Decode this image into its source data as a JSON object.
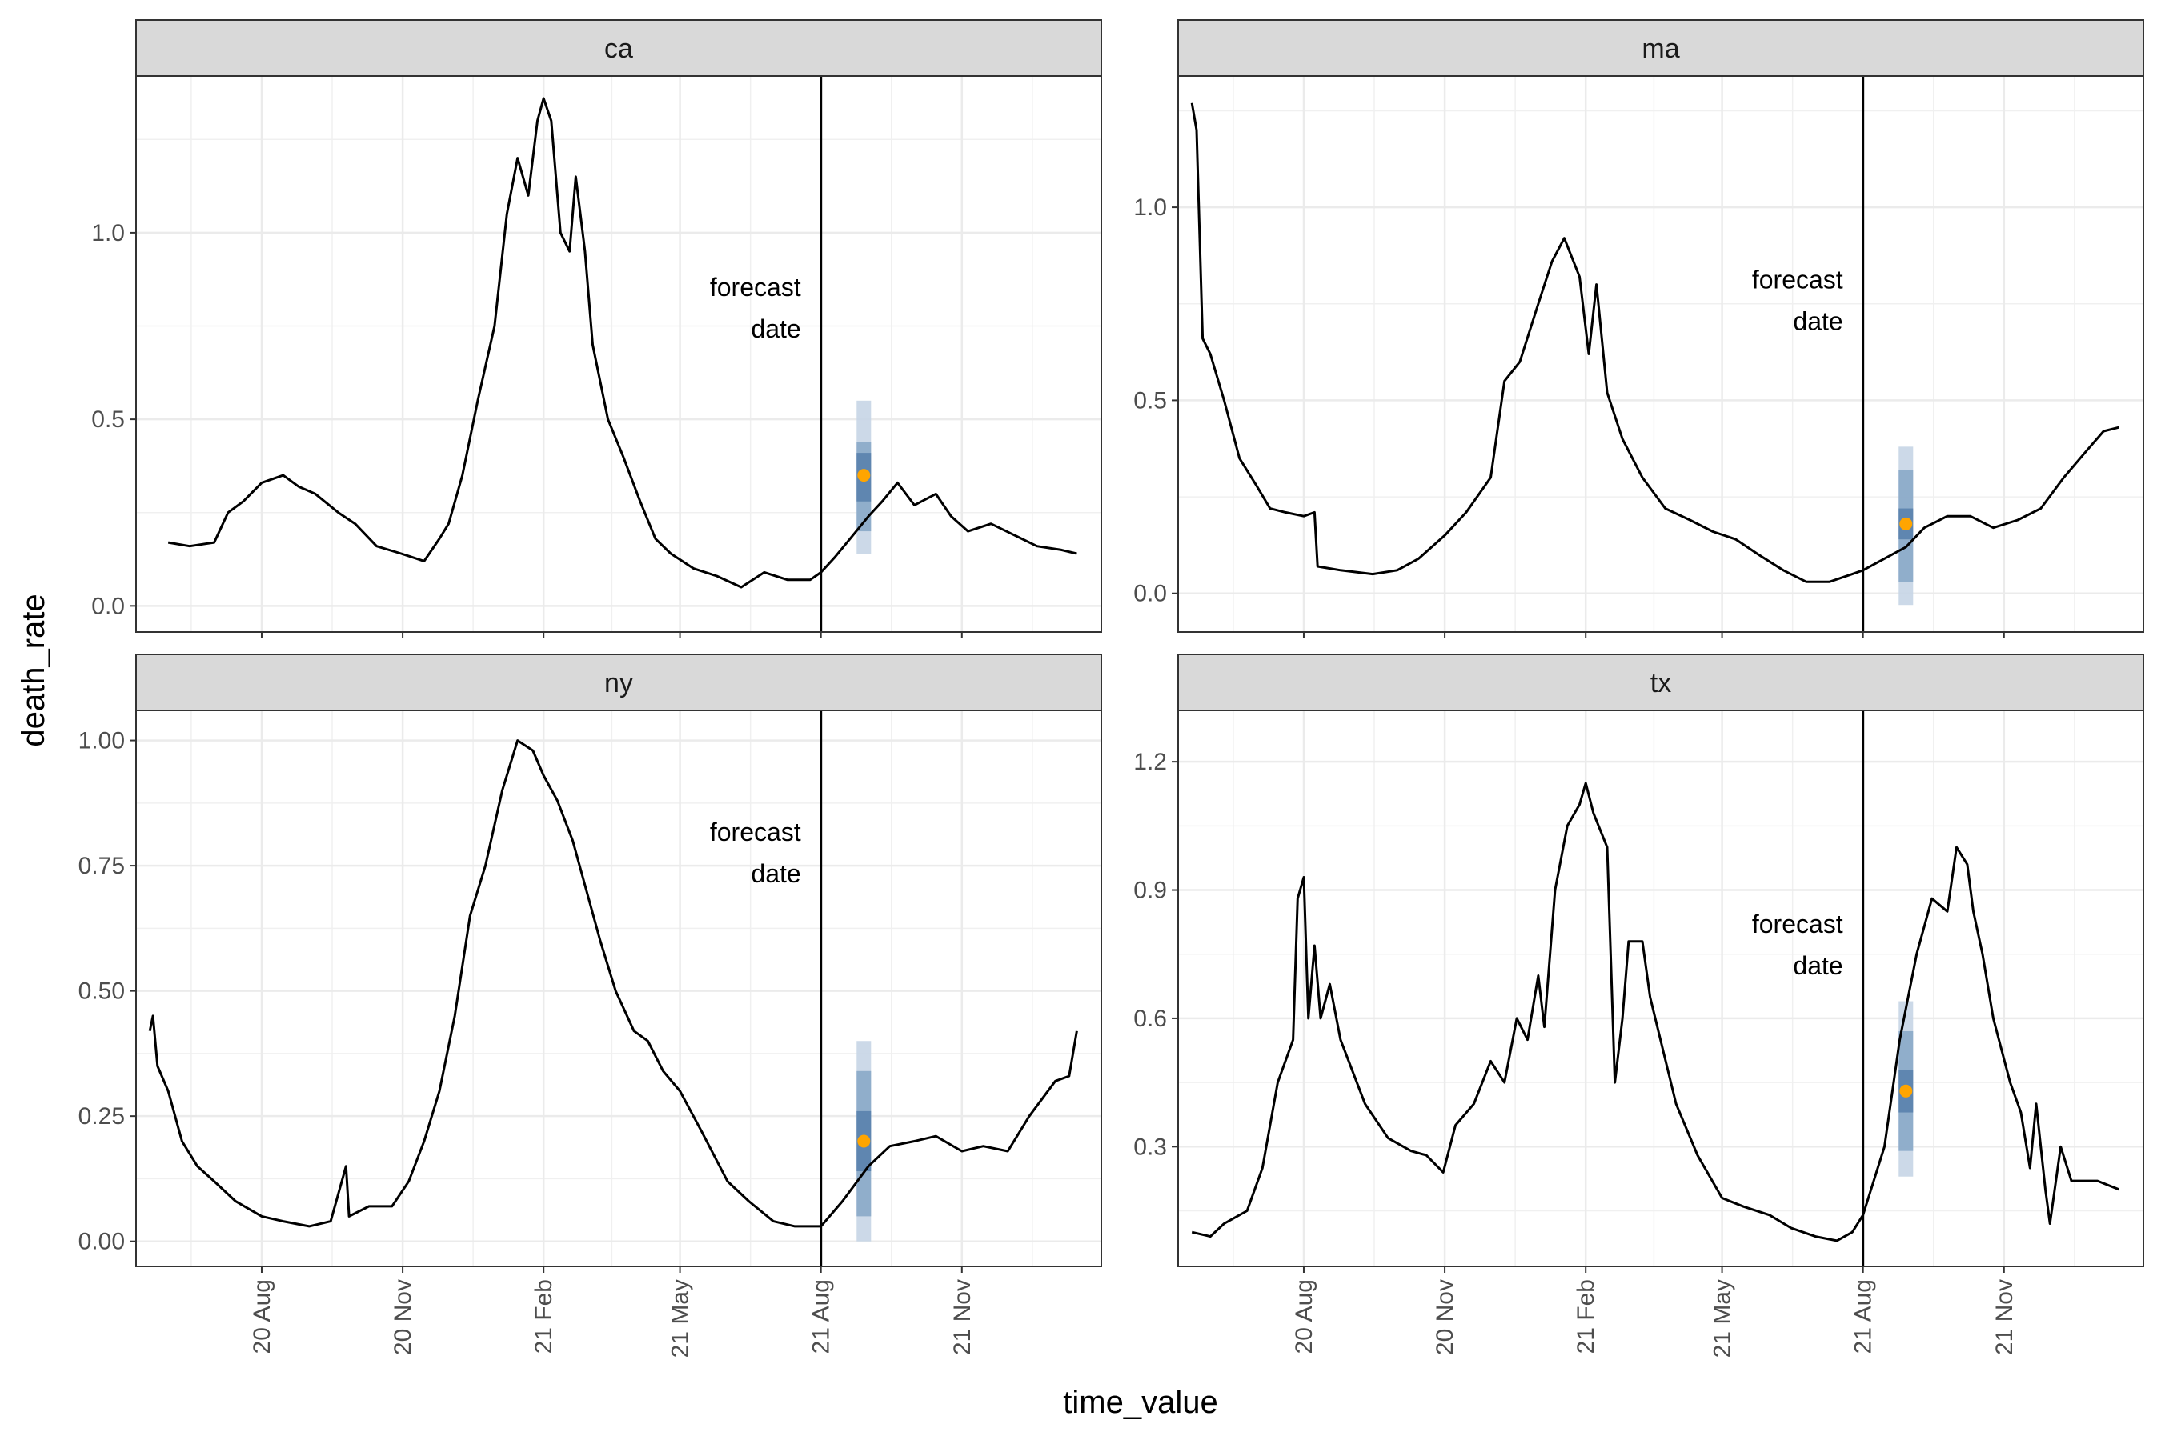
{
  "chart_data": {
    "type": "line",
    "xlabel": "time_value",
    "ylabel": "death_rate",
    "x_ticks": [
      "20 Aug",
      "20 Nov",
      "21 Feb",
      "21 May",
      "21 Aug",
      "21 Nov"
    ],
    "x_tick_dates": [
      "2020-08-01",
      "2020-11-01",
      "2021-02-01",
      "2021-05-01",
      "2021-08-01",
      "2021-11-01"
    ],
    "xlim": [
      "2020-05-11",
      "2022-01-31"
    ],
    "forecast_date": "2021-08-01",
    "target_date": "2021-08-29",
    "annotation": [
      "forecast",
      "date"
    ],
    "grid": true,
    "interval_colors": [
      "#c6d5e5",
      "#8aa8c8",
      "#5a82ad"
    ],
    "point_color": "#ffa500",
    "line_color": "#000000",
    "panels": [
      {
        "name": "ca",
        "ylim": [
          -0.07,
          1.42
        ],
        "y_ticks": [
          "0.0",
          "0.5",
          "1.0"
        ],
        "y_tick_values": [
          0.0,
          0.5,
          1.0
        ],
        "annotation_y": 0.83,
        "forecast": {
          "point": 0.35,
          "bands": [
            [
              0.14,
              0.55
            ],
            [
              0.2,
              0.44
            ],
            [
              0.28,
              0.41
            ]
          ]
        },
        "series": [
          [
            "2020-06-01",
            0.17
          ],
          [
            "2020-06-15",
            0.16
          ],
          [
            "2020-07-01",
            0.17
          ],
          [
            "2020-07-10",
            0.25
          ],
          [
            "2020-07-20",
            0.28
          ],
          [
            "2020-08-01",
            0.33
          ],
          [
            "2020-08-15",
            0.35
          ],
          [
            "2020-08-25",
            0.32
          ],
          [
            "2020-09-05",
            0.3
          ],
          [
            "2020-09-20",
            0.25
          ],
          [
            "2020-10-01",
            0.22
          ],
          [
            "2020-10-15",
            0.16
          ],
          [
            "2020-10-31",
            0.14
          ],
          [
            "2020-11-15",
            0.12
          ],
          [
            "2020-11-25",
            0.18
          ],
          [
            "2020-12-01",
            0.22
          ],
          [
            "2020-12-10",
            0.35
          ],
          [
            "2020-12-20",
            0.55
          ],
          [
            "2020-12-31",
            0.75
          ],
          [
            "2021-01-08",
            1.05
          ],
          [
            "2021-01-15",
            1.2
          ],
          [
            "2021-01-22",
            1.1
          ],
          [
            "2021-01-28",
            1.3
          ],
          [
            "2021-02-01",
            1.36
          ],
          [
            "2021-02-06",
            1.3
          ],
          [
            "2021-02-12",
            1.0
          ],
          [
            "2021-02-18",
            0.95
          ],
          [
            "2021-02-22",
            1.15
          ],
          [
            "2021-02-28",
            0.95
          ],
          [
            "2021-03-05",
            0.7
          ],
          [
            "2021-03-15",
            0.5
          ],
          [
            "2021-03-25",
            0.4
          ],
          [
            "2021-04-05",
            0.28
          ],
          [
            "2021-04-15",
            0.18
          ],
          [
            "2021-04-25",
            0.14
          ],
          [
            "2021-05-10",
            0.1
          ],
          [
            "2021-05-25",
            0.08
          ],
          [
            "2021-06-10",
            0.05
          ],
          [
            "2021-06-25",
            0.09
          ],
          [
            "2021-07-10",
            0.07
          ],
          [
            "2021-07-25",
            0.07
          ],
          [
            "2021-08-01",
            0.09
          ],
          [
            "2021-08-10",
            0.13
          ],
          [
            "2021-08-20",
            0.18
          ],
          [
            "2021-09-01",
            0.24
          ],
          [
            "2021-09-10",
            0.28
          ],
          [
            "2021-09-20",
            0.33
          ],
          [
            "2021-10-01",
            0.27
          ],
          [
            "2021-10-15",
            0.3
          ],
          [
            "2021-10-25",
            0.24
          ],
          [
            "2021-11-05",
            0.2
          ],
          [
            "2021-11-20",
            0.22
          ],
          [
            "2021-12-05",
            0.19
          ],
          [
            "2021-12-20",
            0.16
          ],
          [
            "2022-01-05",
            0.15
          ],
          [
            "2022-01-15",
            0.14
          ]
        ]
      },
      {
        "name": "ma",
        "ylim": [
          -0.1,
          1.34
        ],
        "y_ticks": [
          "0.0",
          "0.5",
          "1.0"
        ],
        "y_tick_values": [
          0.0,
          0.5,
          1.0
        ],
        "annotation_y": 0.79,
        "forecast": {
          "point": 0.18,
          "bands": [
            [
              -0.03,
              0.38
            ],
            [
              0.03,
              0.32
            ],
            [
              0.14,
              0.22
            ]
          ]
        },
        "series": [
          [
            "2020-05-20",
            1.27
          ],
          [
            "2020-05-23",
            1.2
          ],
          [
            "2020-05-27",
            0.66
          ],
          [
            "2020-06-01",
            0.62
          ],
          [
            "2020-06-10",
            0.5
          ],
          [
            "2020-06-20",
            0.35
          ],
          [
            "2020-07-01",
            0.28
          ],
          [
            "2020-07-10",
            0.22
          ],
          [
            "2020-07-20",
            0.21
          ],
          [
            "2020-08-01",
            0.2
          ],
          [
            "2020-08-08",
            0.21
          ],
          [
            "2020-08-10",
            0.07
          ],
          [
            "2020-08-25",
            0.06
          ],
          [
            "2020-09-15",
            0.05
          ],
          [
            "2020-10-01",
            0.06
          ],
          [
            "2020-10-15",
            0.09
          ],
          [
            "2020-11-01",
            0.15
          ],
          [
            "2020-11-15",
            0.21
          ],
          [
            "2020-12-01",
            0.3
          ],
          [
            "2020-12-10",
            0.55
          ],
          [
            "2020-12-20",
            0.6
          ],
          [
            "2021-01-01",
            0.75
          ],
          [
            "2021-01-10",
            0.86
          ],
          [
            "2021-01-18",
            0.92
          ],
          [
            "2021-01-28",
            0.82
          ],
          [
            "2021-02-03",
            0.62
          ],
          [
            "2021-02-08",
            0.8
          ],
          [
            "2021-02-15",
            0.52
          ],
          [
            "2021-02-25",
            0.4
          ],
          [
            "2021-03-10",
            0.3
          ],
          [
            "2021-03-25",
            0.22
          ],
          [
            "2021-04-10",
            0.19
          ],
          [
            "2021-04-25",
            0.16
          ],
          [
            "2021-05-10",
            0.14
          ],
          [
            "2021-05-25",
            0.1
          ],
          [
            "2021-06-10",
            0.06
          ],
          [
            "2021-06-25",
            0.03
          ],
          [
            "2021-07-10",
            0.03
          ],
          [
            "2021-07-25",
            0.05
          ],
          [
            "2021-08-01",
            0.06
          ],
          [
            "2021-08-15",
            0.09
          ],
          [
            "2021-08-29",
            0.12
          ],
          [
            "2021-09-10",
            0.17
          ],
          [
            "2021-09-25",
            0.2
          ],
          [
            "2021-10-10",
            0.2
          ],
          [
            "2021-10-25",
            0.17
          ],
          [
            "2021-11-10",
            0.19
          ],
          [
            "2021-11-25",
            0.22
          ],
          [
            "2021-12-10",
            0.3
          ],
          [
            "2021-12-25",
            0.37
          ],
          [
            "2022-01-05",
            0.42
          ],
          [
            "2022-01-15",
            0.43
          ]
        ]
      },
      {
        "name": "ny",
        "ylim": [
          -0.05,
          1.06
        ],
        "y_ticks": [
          "0.00",
          "0.25",
          "0.50",
          "0.75",
          "1.00"
        ],
        "y_tick_values": [
          0.0,
          0.25,
          0.5,
          0.75,
          1.0
        ],
        "annotation_y": 0.8,
        "forecast": {
          "point": 0.2,
          "bands": [
            [
              0.0,
              0.4
            ],
            [
              0.05,
              0.34
            ],
            [
              0.14,
              0.26
            ]
          ]
        },
        "series": [
          [
            "2020-05-20",
            0.42
          ],
          [
            "2020-05-22",
            0.45
          ],
          [
            "2020-05-25",
            0.35
          ],
          [
            "2020-06-01",
            0.3
          ],
          [
            "2020-06-10",
            0.2
          ],
          [
            "2020-06-20",
            0.15
          ],
          [
            "2020-07-01",
            0.12
          ],
          [
            "2020-07-15",
            0.08
          ],
          [
            "2020-08-01",
            0.05
          ],
          [
            "2020-08-15",
            0.04
          ],
          [
            "2020-09-01",
            0.03
          ],
          [
            "2020-09-15",
            0.04
          ],
          [
            "2020-09-25",
            0.15
          ],
          [
            "2020-09-27",
            0.05
          ],
          [
            "2020-10-10",
            0.07
          ],
          [
            "2020-10-25",
            0.07
          ],
          [
            "2020-11-05",
            0.12
          ],
          [
            "2020-11-15",
            0.2
          ],
          [
            "2020-11-25",
            0.3
          ],
          [
            "2020-12-05",
            0.45
          ],
          [
            "2020-12-15",
            0.65
          ],
          [
            "2020-12-25",
            0.75
          ],
          [
            "2021-01-05",
            0.9
          ],
          [
            "2021-01-15",
            1.0
          ],
          [
            "2021-01-25",
            0.98
          ],
          [
            "2021-02-01",
            0.93
          ],
          [
            "2021-02-10",
            0.88
          ],
          [
            "2021-02-20",
            0.8
          ],
          [
            "2021-03-01",
            0.7
          ],
          [
            "2021-03-10",
            0.6
          ],
          [
            "2021-03-20",
            0.5
          ],
          [
            "2021-04-01",
            0.42
          ],
          [
            "2021-04-10",
            0.4
          ],
          [
            "2021-04-20",
            0.34
          ],
          [
            "2021-05-01",
            0.3
          ],
          [
            "2021-05-15",
            0.22
          ],
          [
            "2021-06-01",
            0.12
          ],
          [
            "2021-06-15",
            0.08
          ],
          [
            "2021-07-01",
            0.04
          ],
          [
            "2021-07-15",
            0.03
          ],
          [
            "2021-08-01",
            0.03
          ],
          [
            "2021-08-15",
            0.08
          ],
          [
            "2021-09-01",
            0.15
          ],
          [
            "2021-09-15",
            0.19
          ],
          [
            "2021-10-01",
            0.2
          ],
          [
            "2021-10-15",
            0.21
          ],
          [
            "2021-11-01",
            0.18
          ],
          [
            "2021-11-15",
            0.19
          ],
          [
            "2021-12-01",
            0.18
          ],
          [
            "2021-12-15",
            0.25
          ],
          [
            "2022-01-01",
            0.32
          ],
          [
            "2022-01-10",
            0.33
          ],
          [
            "2022-01-15",
            0.42
          ]
        ]
      },
      {
        "name": "tx",
        "ylim": [
          0.02,
          1.32
        ],
        "y_ticks": [
          "0.3",
          "0.6",
          "0.9",
          "1.2"
        ],
        "y_tick_values": [
          0.3,
          0.6,
          0.9,
          1.2
        ],
        "annotation_y": 0.8,
        "forecast": {
          "point": 0.43,
          "bands": [
            [
              0.23,
              0.64
            ],
            [
              0.29,
              0.57
            ],
            [
              0.38,
              0.48
            ]
          ]
        },
        "series": [
          [
            "2020-05-20",
            0.1
          ],
          [
            "2020-06-01",
            0.09
          ],
          [
            "2020-06-10",
            0.12
          ],
          [
            "2020-06-25",
            0.15
          ],
          [
            "2020-07-05",
            0.25
          ],
          [
            "2020-07-15",
            0.45
          ],
          [
            "2020-07-25",
            0.55
          ],
          [
            "2020-07-28",
            0.88
          ],
          [
            "2020-08-01",
            0.93
          ],
          [
            "2020-08-04",
            0.6
          ],
          [
            "2020-08-08",
            0.77
          ],
          [
            "2020-08-12",
            0.6
          ],
          [
            "2020-08-18",
            0.68
          ],
          [
            "2020-08-25",
            0.55
          ],
          [
            "2020-09-10",
            0.4
          ],
          [
            "2020-09-25",
            0.32
          ],
          [
            "2020-10-10",
            0.29
          ],
          [
            "2020-10-20",
            0.28
          ],
          [
            "2020-10-31",
            0.24
          ],
          [
            "2020-11-08",
            0.35
          ],
          [
            "2020-11-20",
            0.4
          ],
          [
            "2020-12-01",
            0.5
          ],
          [
            "2020-12-10",
            0.45
          ],
          [
            "2020-12-18",
            0.6
          ],
          [
            "2020-12-25",
            0.55
          ],
          [
            "2021-01-01",
            0.7
          ],
          [
            "2021-01-05",
            0.58
          ],
          [
            "2021-01-12",
            0.9
          ],
          [
            "2021-01-20",
            1.05
          ],
          [
            "2021-01-28",
            1.1
          ],
          [
            "2021-02-01",
            1.15
          ],
          [
            "2021-02-06",
            1.08
          ],
          [
            "2021-02-15",
            1.0
          ],
          [
            "2021-02-20",
            0.45
          ],
          [
            "2021-02-25",
            0.6
          ],
          [
            "2021-03-01",
            0.78
          ],
          [
            "2021-03-10",
            0.78
          ],
          [
            "2021-03-15",
            0.65
          ],
          [
            "2021-04-01",
            0.4
          ],
          [
            "2021-04-15",
            0.28
          ],
          [
            "2021-05-01",
            0.18
          ],
          [
            "2021-05-15",
            0.16
          ],
          [
            "2021-06-01",
            0.14
          ],
          [
            "2021-06-15",
            0.11
          ],
          [
            "2021-07-01",
            0.09
          ],
          [
            "2021-07-15",
            0.08
          ],
          [
            "2021-07-25",
            0.1
          ],
          [
            "2021-08-01",
            0.14
          ],
          [
            "2021-08-15",
            0.3
          ],
          [
            "2021-08-25",
            0.55
          ],
          [
            "2021-09-05",
            0.75
          ],
          [
            "2021-09-15",
            0.88
          ],
          [
            "2021-09-25",
            0.85
          ],
          [
            "2021-10-01",
            1.0
          ],
          [
            "2021-10-08",
            0.96
          ],
          [
            "2021-10-12",
            0.85
          ],
          [
            "2021-10-18",
            0.75
          ],
          [
            "2021-10-25",
            0.6
          ],
          [
            "2021-11-05",
            0.45
          ],
          [
            "2021-11-12",
            0.38
          ],
          [
            "2021-11-18",
            0.25
          ],
          [
            "2021-11-22",
            0.4
          ],
          [
            "2021-11-28",
            0.2
          ],
          [
            "2021-12-01",
            0.12
          ],
          [
            "2021-12-08",
            0.3
          ],
          [
            "2021-12-15",
            0.22
          ],
          [
            "2022-01-01",
            0.22
          ],
          [
            "2022-01-15",
            0.2
          ]
        ]
      }
    ]
  }
}
